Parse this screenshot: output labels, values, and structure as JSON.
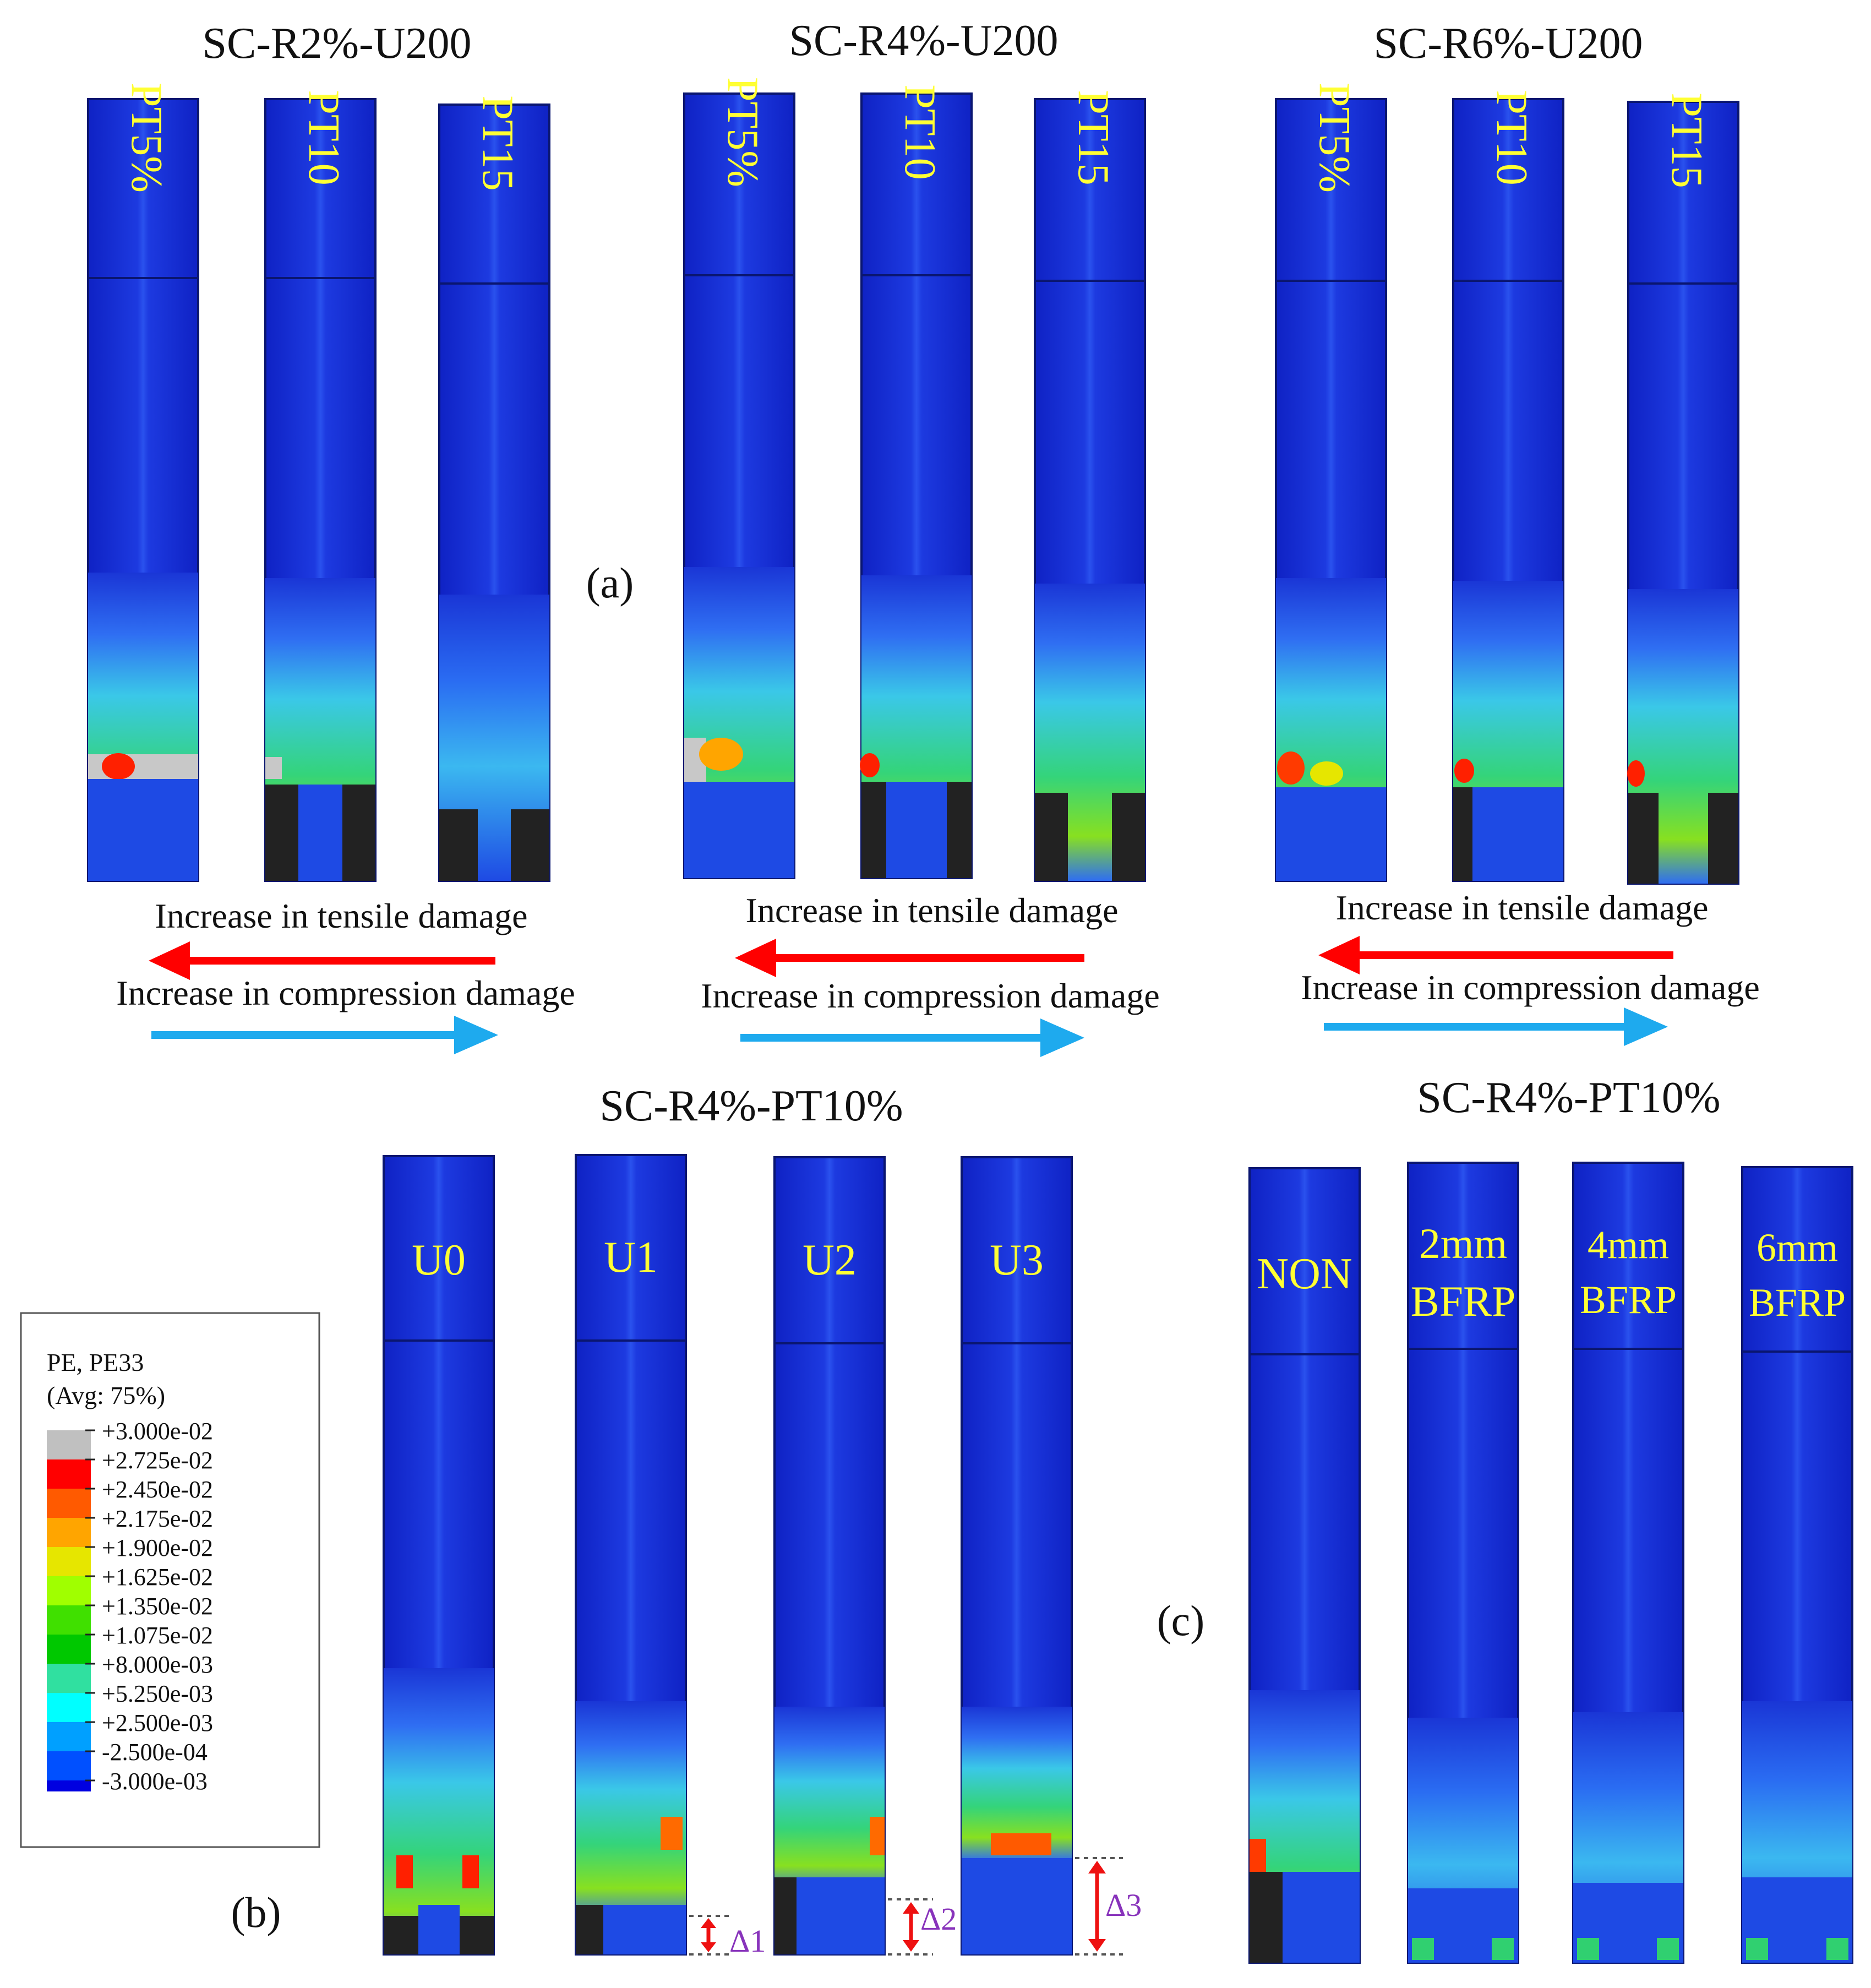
{
  "panel_a": {
    "figure_label": "(a)",
    "groups": [
      {
        "title": "SC-R2%-U200",
        "columns": [
          "PT5%",
          "PT10",
          "PT15"
        ],
        "arrow_tensile": "Increase in tensile damage",
        "arrow_compression": "Increase in compression damage"
      },
      {
        "title": "SC-R4%-U200",
        "columns": [
          "PT5%",
          "PT10",
          "PT15"
        ],
        "arrow_tensile": "Increase in tensile damage",
        "arrow_compression": "Increase in compression damage"
      },
      {
        "title": "SC-R6%-U200",
        "columns": [
          "PT5%",
          "PT10",
          "PT15"
        ],
        "arrow_tensile": "Increase in tensile damage",
        "arrow_compression": "Increase in compression damage"
      }
    ]
  },
  "panel_b": {
    "figure_label": "(b)",
    "title": "SC-R4%-PT10%",
    "columns": [
      "U0",
      "U1",
      "U2",
      "U3"
    ],
    "gap_labels": [
      "Δ1",
      "Δ2",
      "Δ3"
    ]
  },
  "panel_c": {
    "figure_label": "(c)",
    "title": "SC-R4%-PT10%",
    "columns": [
      {
        "line1": "NON",
        "line2": ""
      },
      {
        "line1": "2mm",
        "line2": "BFRP"
      },
      {
        "line1": "4mm",
        "line2": "BFRP"
      },
      {
        "line1": "6mm",
        "line2": "BFRP"
      }
    ]
  },
  "legend": {
    "title_line1": "PE, PE33",
    "title_line2": "(Avg: 75%)",
    "levels": [
      "+3.000e-02",
      "+2.725e-02",
      "+2.450e-02",
      "+2.175e-02",
      "+1.900e-02",
      "+1.625e-02",
      "+1.350e-02",
      "+1.075e-02",
      "+8.000e-03",
      "+5.250e-03",
      "+2.500e-03",
      "-2.500e-04",
      "-3.000e-03"
    ],
    "colors": [
      "#c0c0c0",
      "#ff0000",
      "#ff5a00",
      "#ffa500",
      "#e6e600",
      "#a0ff00",
      "#40e000",
      "#00c800",
      "#30e0a0",
      "#00ffff",
      "#00a0ff",
      "#0050ff",
      "#0000e0"
    ]
  },
  "colors": {
    "column_blue": "#1a36d6",
    "label_yellow": "#ffff33",
    "tensile_arrow": "#ff0000",
    "compression_arrow": "#1eaaee",
    "delta_arrow": "#ee1111",
    "delta_label": "#8833bb"
  }
}
